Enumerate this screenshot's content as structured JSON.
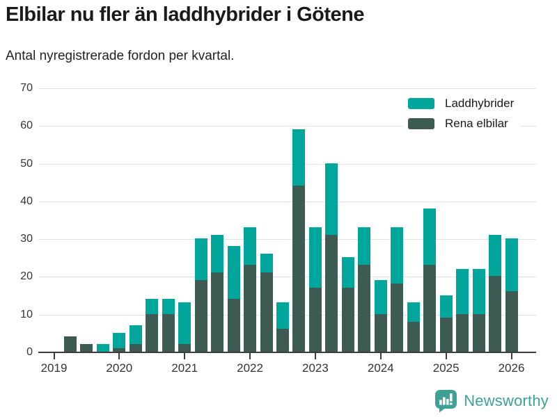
{
  "header": {
    "title": "Elbilar nu fler än laddhybrider i Götene",
    "subtitle": "Antal nyregistrerade fordon per kvartal."
  },
  "branding": {
    "name": "Newsworthy",
    "color": "#3da296"
  },
  "chart_data": {
    "type": "bar",
    "stacked": true,
    "title": "Elbilar nu fler än laddhybrider i Götene",
    "subtitle": "Antal nyregistrerade fordon per kvartal.",
    "categories": [
      "2019 Q1",
      "2019 Q2",
      "2019 Q3",
      "2019 Q4",
      "2020 Q1",
      "2020 Q2",
      "2020 Q3",
      "2020 Q4",
      "2021 Q1",
      "2021 Q2",
      "2021 Q3",
      "2021 Q4",
      "2022 Q1",
      "2022 Q2",
      "2022 Q3",
      "2022 Q4",
      "2023 Q1",
      "2023 Q2",
      "2023 Q3",
      "2023 Q4",
      "2024 Q1",
      "2024 Q2",
      "2024 Q3",
      "2024 Q4",
      "2025 Q1",
      "2025 Q2",
      "2025 Q3",
      "2025 Q4",
      "2026 Q1"
    ],
    "series": [
      {
        "name": "Laddhybrider",
        "color": "#00a59c",
        "values": [
          0,
          0,
          0,
          2,
          4,
          5,
          4,
          4,
          11,
          11,
          10,
          14,
          10,
          5,
          7,
          15,
          16,
          19,
          8,
          10,
          9,
          15,
          5,
          15,
          6,
          12,
          12,
          11,
          14
        ]
      },
      {
        "name": "Rena elbilar",
        "color": "#3d5b53",
        "values": [
          0,
          4,
          2,
          0,
          1,
          2,
          10,
          10,
          2,
          19,
          21,
          14,
          23,
          21,
          6,
          44,
          17,
          31,
          17,
          23,
          10,
          18,
          8,
          23,
          9,
          10,
          10,
          20,
          16
        ]
      }
    ],
    "stack_bottom_to_top": [
      "Rena elbilar",
      "Laddhybrider"
    ],
    "totals": [
      0,
      4,
      2,
      2,
      5,
      7,
      14,
      14,
      13,
      30,
      31,
      28,
      33,
      26,
      13,
      59,
      33,
      50,
      25,
      33,
      19,
      33,
      13,
      38,
      15,
      22,
      22,
      31,
      30
    ],
    "ylim": [
      0,
      70
    ],
    "yticks": [
      0,
      10,
      20,
      30,
      40,
      50,
      60,
      70
    ],
    "x_tick_labels": [
      "2019",
      "2020",
      "2021",
      "2022",
      "2023",
      "2024",
      "2025",
      "2026"
    ],
    "xlabel": "",
    "ylabel": "",
    "grid": "horizontal",
    "legend_position": "top-right"
  }
}
